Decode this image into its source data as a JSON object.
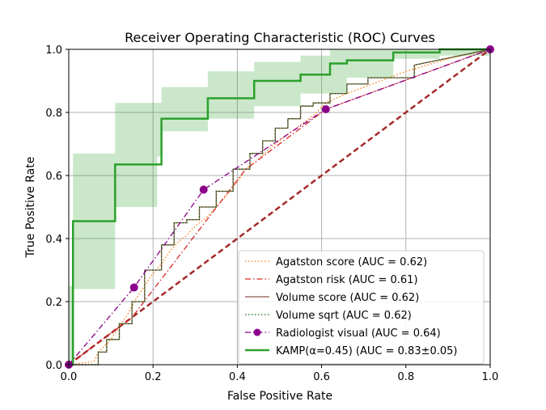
{
  "chart_data": {
    "type": "line",
    "title": "Receiver Operating Characteristic (ROC) Curves",
    "xlabel": "False Positive Rate",
    "ylabel": "True Positive Rate",
    "xlim": [
      0,
      1
    ],
    "ylim": [
      0,
      1
    ],
    "xticks": [
      "0.0",
      "0.2",
      "0.4",
      "0.6",
      "0.8",
      "1.0"
    ],
    "yticks": [
      "0.0",
      "0.2",
      "0.4",
      "0.6",
      "0.8",
      "1.0"
    ],
    "grid": true,
    "legend_position": "lower-right",
    "diagonal": {
      "x": [
        0,
        1
      ],
      "y": [
        0,
        1
      ],
      "color": "#a52a2a",
      "style": "dashed"
    },
    "kamp_band": {
      "color": "#2ca02c",
      "x": [
        0,
        0.01,
        0.01,
        0.1,
        0.1,
        0.11,
        0.11,
        0.21,
        0.21,
        0.22,
        0.22,
        0.33,
        0.33,
        0.44,
        0.44,
        0.55,
        0.55,
        0.62,
        0.62,
        0.66,
        0.66,
        0.77,
        0.77,
        0.88,
        0.88,
        1.0
      ],
      "lower": [
        0,
        0,
        0.24,
        0.24,
        0.24,
        0.24,
        0.5,
        0.5,
        0.66,
        0.66,
        0.74,
        0.74,
        0.78,
        0.78,
        0.82,
        0.82,
        0.86,
        0.86,
        0.86,
        0.86,
        0.91,
        0.91,
        0.97,
        0.97,
        0.98,
        0.98
      ],
      "upper": [
        0.25,
        0.25,
        0.67,
        0.67,
        0.67,
        0.67,
        0.83,
        0.83,
        0.83,
        0.83,
        0.88,
        0.88,
        0.93,
        0.93,
        0.96,
        0.96,
        0.98,
        0.98,
        1.0,
        1.0,
        1.0,
        1.0,
        1.0,
        1.0,
        1.0,
        1.0
      ]
    },
    "series": [
      {
        "name": "Agatston score (AUC = 0.62)",
        "color": "#ff7f0e",
        "style": "dotted",
        "marker": "",
        "x": [
          0,
          0.06,
          0.07,
          0.1,
          0.12,
          0.14,
          0.16,
          0.18,
          0.2,
          0.22,
          0.24,
          0.26,
          0.28,
          0.3,
          0.33,
          0.35,
          0.37,
          0.4,
          0.42,
          0.45,
          0.48,
          0.52,
          0.55,
          0.58,
          0.61,
          0.66,
          0.72,
          0.8,
          0.9,
          1.0
        ],
        "y": [
          0,
          0.01,
          0.04,
          0.08,
          0.12,
          0.16,
          0.21,
          0.25,
          0.29,
          0.32,
          0.36,
          0.39,
          0.41,
          0.44,
          0.47,
          0.5,
          0.53,
          0.58,
          0.62,
          0.65,
          0.69,
          0.73,
          0.76,
          0.79,
          0.83,
          0.86,
          0.89,
          0.93,
          0.97,
          1.0
        ]
      },
      {
        "name": "Agatston risk (AUC = 0.61)",
        "color": "#d62728",
        "style": "dashdot",
        "marker": "",
        "x": [
          0,
          0.15,
          0.42,
          0.61,
          1.0
        ],
        "y": [
          0,
          0.15,
          0.62,
          0.81,
          1.0
        ]
      },
      {
        "name": "Volume score (AUC = 0.62)",
        "color": "#8c564b",
        "style": "solid",
        "marker": "",
        "x": [
          0,
          0.07,
          0.07,
          0.09,
          0.09,
          0.12,
          0.12,
          0.15,
          0.15,
          0.18,
          0.18,
          0.22,
          0.22,
          0.25,
          0.25,
          0.28,
          0.28,
          0.31,
          0.31,
          0.35,
          0.35,
          0.39,
          0.39,
          0.43,
          0.43,
          0.46,
          0.46,
          0.49,
          0.49,
          0.52,
          0.52,
          0.55,
          0.55,
          0.58,
          0.58,
          0.62,
          0.62,
          0.66,
          0.66,
          0.71,
          0.71,
          0.82,
          0.82,
          1.0
        ],
        "y": [
          0,
          0,
          0.04,
          0.04,
          0.08,
          0.08,
          0.13,
          0.13,
          0.2,
          0.2,
          0.3,
          0.3,
          0.38,
          0.38,
          0.45,
          0.45,
          0.46,
          0.46,
          0.5,
          0.5,
          0.55,
          0.55,
          0.62,
          0.62,
          0.67,
          0.67,
          0.71,
          0.71,
          0.75,
          0.75,
          0.78,
          0.78,
          0.82,
          0.82,
          0.83,
          0.83,
          0.86,
          0.86,
          0.89,
          0.89,
          0.91,
          0.91,
          0.95,
          1.0
        ]
      },
      {
        "name": "Volume sqrt (AUC = 0.62)",
        "color": "#006400",
        "style": "dotted",
        "marker": "",
        "x": [
          0,
          0.07,
          0.07,
          0.09,
          0.09,
          0.12,
          0.12,
          0.15,
          0.15,
          0.18,
          0.18,
          0.22,
          0.22,
          0.25,
          0.25,
          0.28,
          0.28,
          0.31,
          0.31,
          0.35,
          0.35,
          0.39,
          0.39,
          0.43,
          0.43,
          0.46,
          0.46,
          0.49,
          0.49,
          0.52,
          0.52,
          0.55,
          0.55,
          0.58,
          0.58,
          0.62,
          0.62,
          0.66,
          0.66,
          0.71,
          0.71,
          0.82,
          0.82,
          1.0
        ],
        "y": [
          0,
          0,
          0.04,
          0.04,
          0.08,
          0.08,
          0.13,
          0.13,
          0.2,
          0.2,
          0.3,
          0.3,
          0.38,
          0.38,
          0.45,
          0.45,
          0.46,
          0.46,
          0.5,
          0.5,
          0.55,
          0.55,
          0.62,
          0.62,
          0.67,
          0.67,
          0.71,
          0.71,
          0.75,
          0.75,
          0.78,
          0.78,
          0.82,
          0.82,
          0.83,
          0.83,
          0.86,
          0.86,
          0.89,
          0.89,
          0.91,
          0.91,
          0.95,
          1.0
        ]
      },
      {
        "name": "Radiologist visual (AUC = 0.64)",
        "color": "#8b008b",
        "style": "dashdot",
        "marker": "circle",
        "x": [
          0,
          0.155,
          0.32,
          0.61,
          1.0
        ],
        "y": [
          0,
          0.245,
          0.555,
          0.81,
          1.0
        ]
      },
      {
        "name": "KAMP(α=0.45) (AUC = 0.83±0.05)",
        "color": "#2ca02c",
        "style": "solid",
        "marker": "",
        "x": [
          0,
          0.01,
          0.01,
          0.1,
          0.1,
          0.11,
          0.11,
          0.21,
          0.21,
          0.22,
          0.22,
          0.33,
          0.33,
          0.44,
          0.44,
          0.55,
          0.55,
          0.62,
          0.62,
          0.66,
          0.66,
          0.77,
          0.77,
          0.88,
          0.88,
          1.0
        ],
        "y": [
          0,
          0,
          0.455,
          0.455,
          0.455,
          0.455,
          0.635,
          0.635,
          0.635,
          0.635,
          0.78,
          0.78,
          0.845,
          0.845,
          0.9,
          0.9,
          0.92,
          0.92,
          0.955,
          0.955,
          0.965,
          0.965,
          0.99,
          0.99,
          1.0,
          1.0
        ]
      }
    ]
  }
}
